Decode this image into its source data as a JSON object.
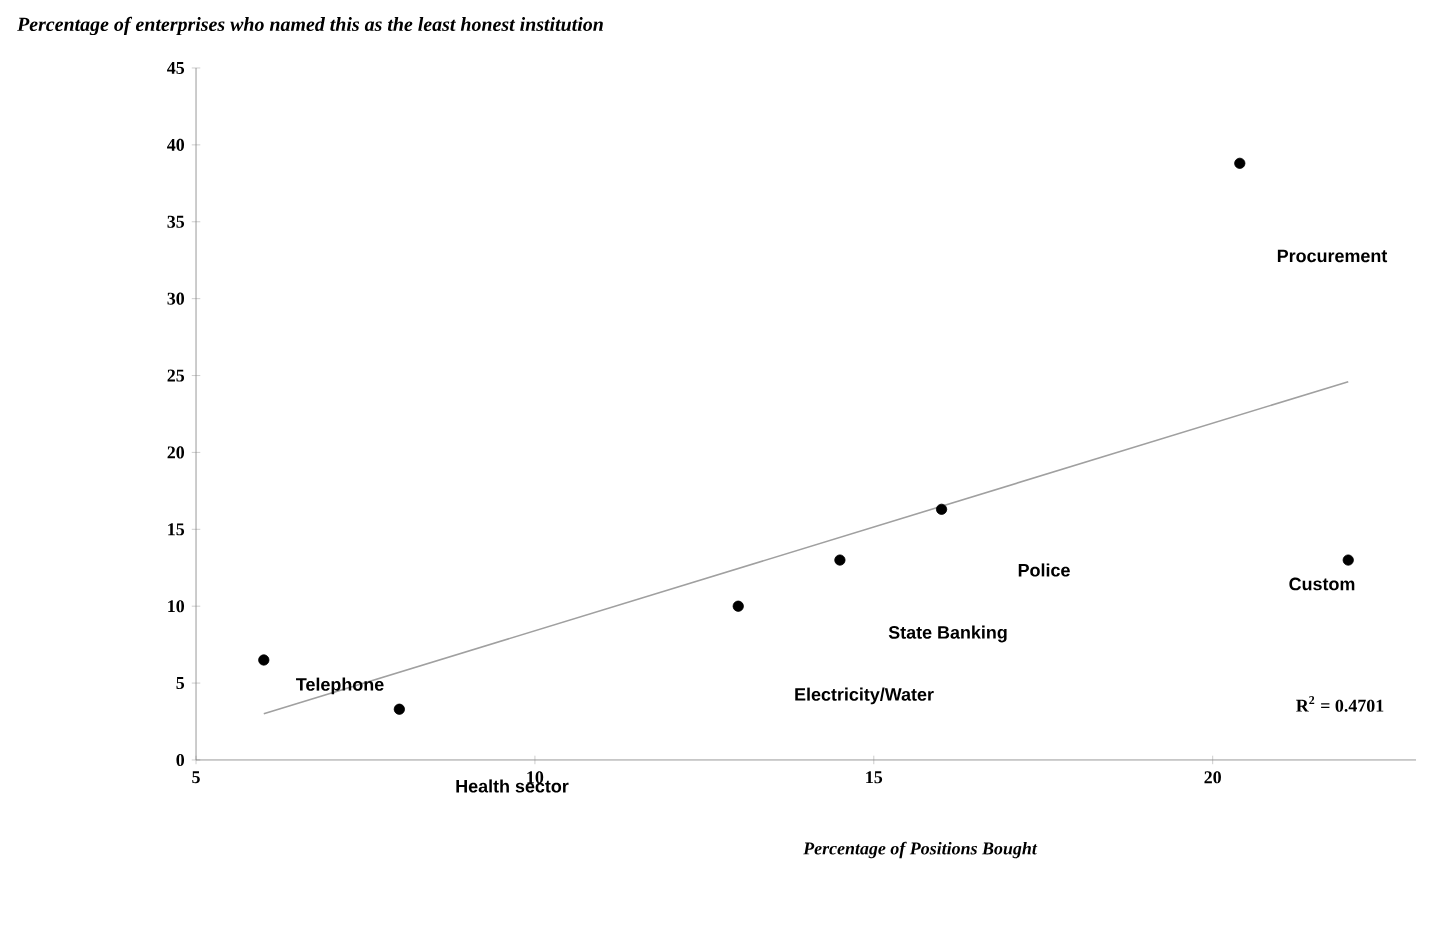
{
  "chart_data": {
    "type": "scatter",
    "xlabel": "Percentage of Positions Bought",
    "ylabel": "Percentage of enterprises who named this as the least honest institution",
    "x": [
      6,
      8,
      13,
      14.5,
      16,
      20.4,
      22
    ],
    "series": [
      {
        "color": "#000000",
        "values": [
          6.5,
          3.3,
          10,
          13,
          16.3,
          38.8,
          13
        ],
        "marker": "circle"
      },
      {
        "type": "line",
        "color": "#a0a0a0",
        "x": [
          6,
          22
        ],
        "values": [
          3.0,
          24.6
        ],
        "marker": "none"
      }
    ],
    "xlim": [
      5,
      23
    ],
    "ylim": [
      0,
      45
    ],
    "xticks": [
      5,
      10,
      15,
      20
    ],
    "yticks": [
      0,
      5,
      10,
      15,
      20,
      25,
      30,
      35,
      40,
      45
    ],
    "grid": false,
    "annotations": [
      "Telephone",
      "Health sector",
      "Electricity/Water",
      "State Banking",
      "Police",
      "Custom",
      "Procurement",
      "R$^{2}$ = 0.4701"
    ]
  }
}
